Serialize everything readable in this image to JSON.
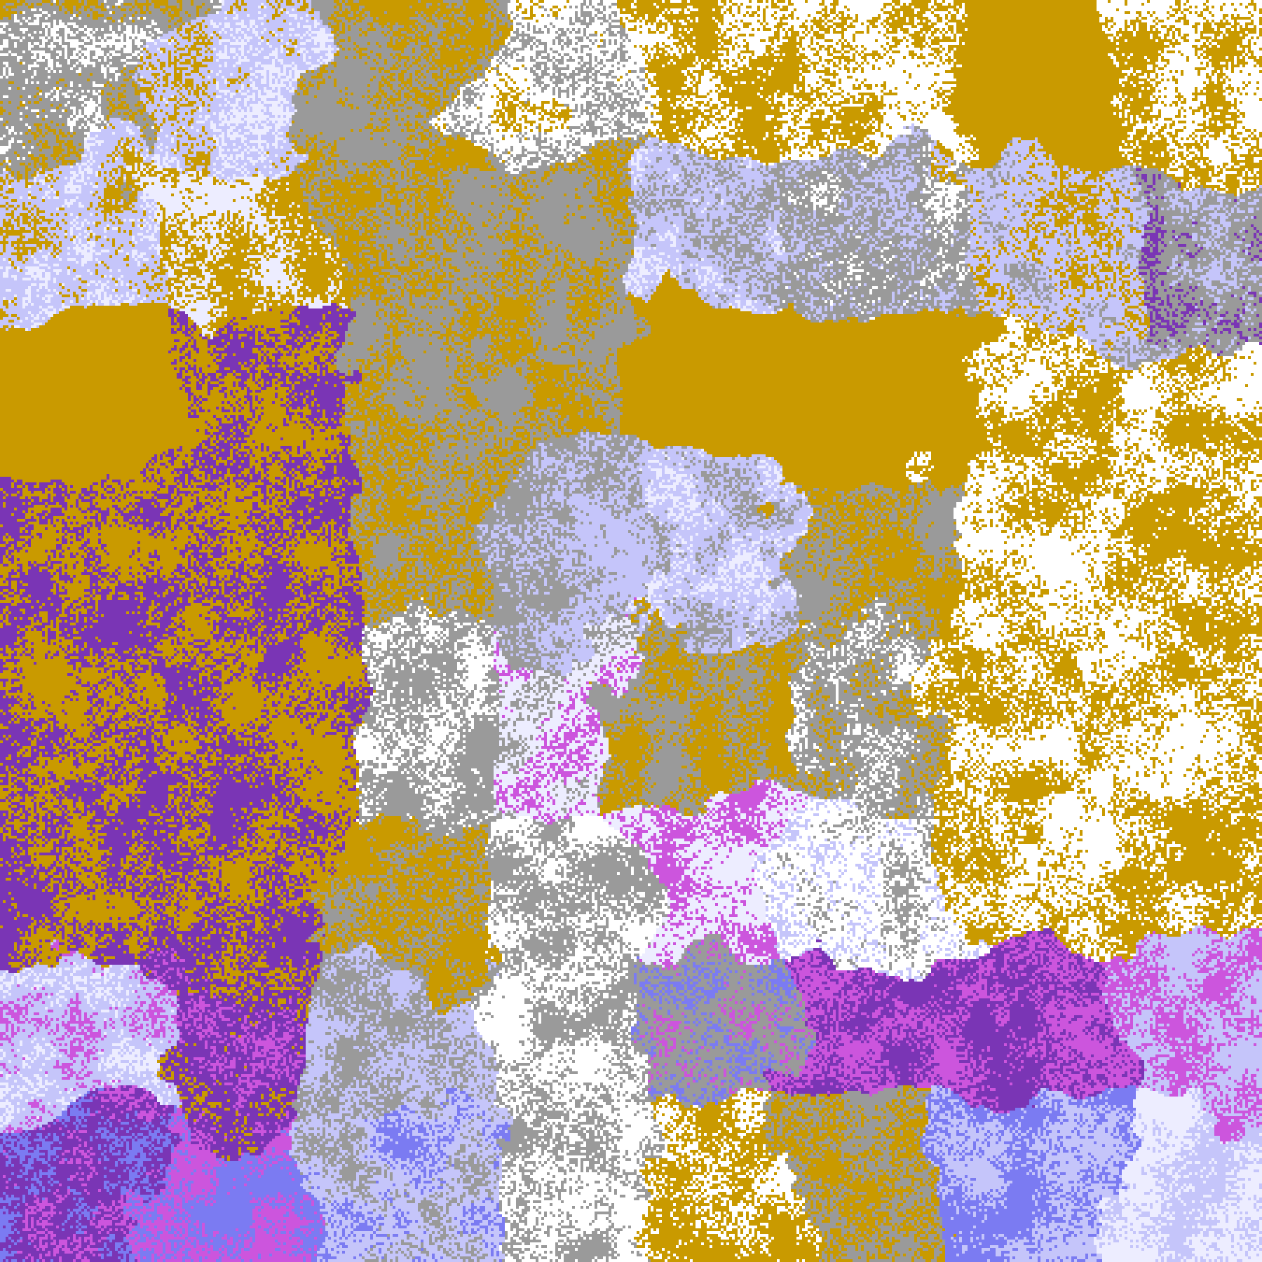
{
  "image": {
    "kind": "false-color satellite cloud classification",
    "palette": {
      "clear": "#FFFFFF",
      "gold": "#C99A00",
      "purple": "#7A35B5",
      "magenta": "#CC55DD",
      "blue": "#7B7BF2",
      "lavender": "#C5C5FA",
      "pale": "#EDEDFF",
      "gray": "#9A9A9A"
    }
  }
}
